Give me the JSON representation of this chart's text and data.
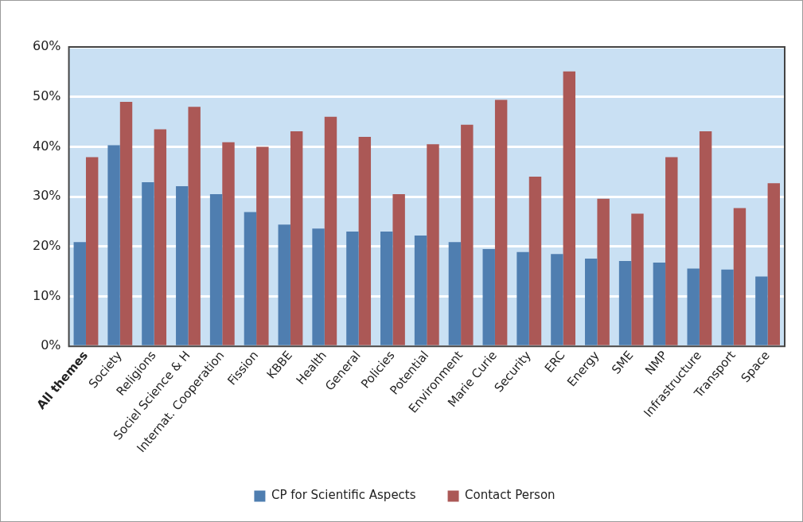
{
  "chart_data": {
    "type": "bar",
    "categories": [
      "All themes",
      "Society",
      "Religions",
      "Sociel Science & H",
      "Internat. Cooperation",
      "Fission",
      "KBBE",
      "Health",
      "General",
      "Policies",
      "Potential",
      "Environment",
      "Marie Curie",
      "Security",
      "ERC",
      "Energy",
      "SME",
      "NMP",
      "Infrastructure",
      "Transport",
      "Space"
    ],
    "series": [
      {
        "name": "CP for Scientific Aspects",
        "color": "#4f7eb0",
        "values": [
          20.9,
          40.3,
          32.9,
          32.1,
          30.5,
          26.9,
          24.4,
          23.6,
          23.0,
          23.0,
          22.2,
          20.9,
          19.5,
          18.9,
          18.5,
          17.6,
          17.1,
          16.8,
          15.6,
          15.4,
          14.0
        ]
      },
      {
        "name": "Contact Person",
        "color": "#ab5856",
        "values": [
          37.9,
          49.0,
          43.5,
          48.0,
          40.9,
          40.0,
          43.1,
          46.0,
          42.0,
          30.5,
          40.5,
          44.4,
          49.4,
          34.0,
          55.1,
          29.6,
          26.6,
          37.9,
          43.1,
          27.7,
          32.7
        ]
      }
    ],
    "ylim": [
      0,
      60
    ],
    "yticks": [
      {
        "value": 0,
        "label": "0%"
      },
      {
        "value": 10,
        "label": "10%"
      },
      {
        "value": 20,
        "label": "20%"
      },
      {
        "value": 30,
        "label": "30%"
      },
      {
        "value": 40,
        "label": "40%"
      },
      {
        "value": 50,
        "label": "50%"
      },
      {
        "value": 60,
        "label": "60%"
      }
    ],
    "grid": "y",
    "legend": "bottom"
  }
}
